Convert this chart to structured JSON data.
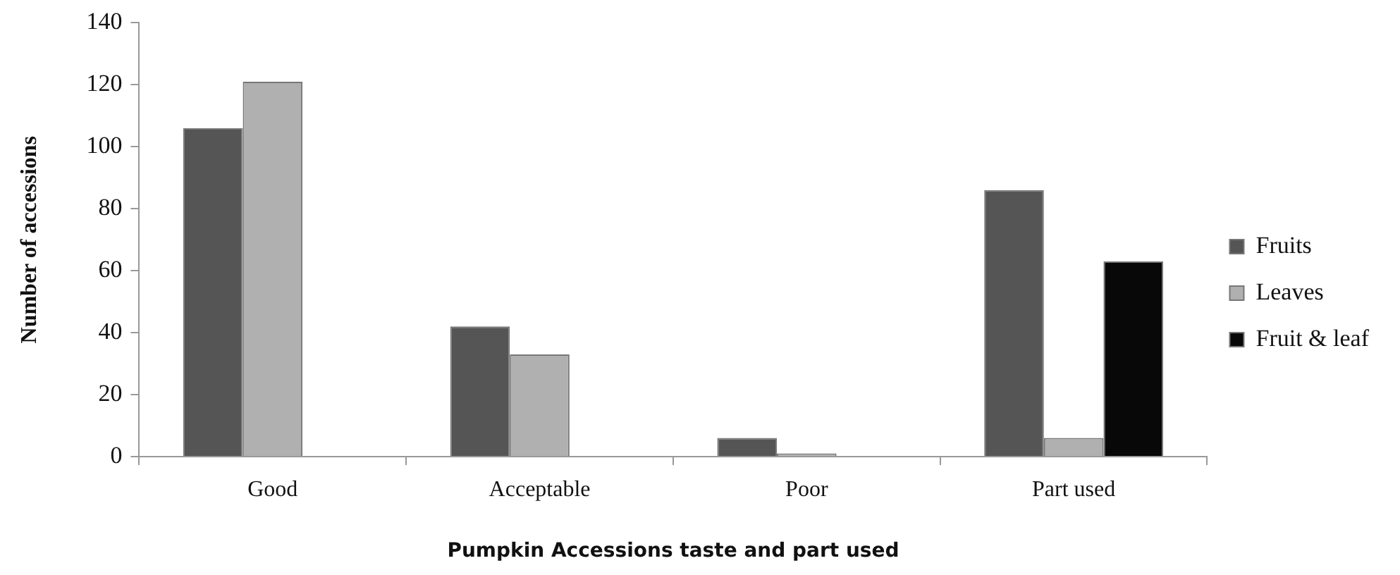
{
  "chart_data": {
    "type": "bar",
    "xlabel": "Pumpkin Accessions taste and part used",
    "ylabel": "Number of accessions",
    "categories": [
      "Good",
      "Acceptable",
      "Poor",
      "Part used"
    ],
    "series": [
      {
        "name": "Fruits",
        "color": "#555555",
        "values": [
          106,
          42,
          6,
          86
        ]
      },
      {
        "name": "Leaves",
        "color": "#b0b0b0",
        "values": [
          121,
          33,
          1,
          6
        ]
      },
      {
        "name": "Fruit & leaf",
        "color": "#080808",
        "values": [
          null,
          null,
          null,
          63
        ]
      }
    ],
    "ylim": [
      0,
      140
    ],
    "yticks": [
      0,
      20,
      40,
      60,
      80,
      100,
      120,
      140
    ],
    "grid": false,
    "legend": "right"
  }
}
